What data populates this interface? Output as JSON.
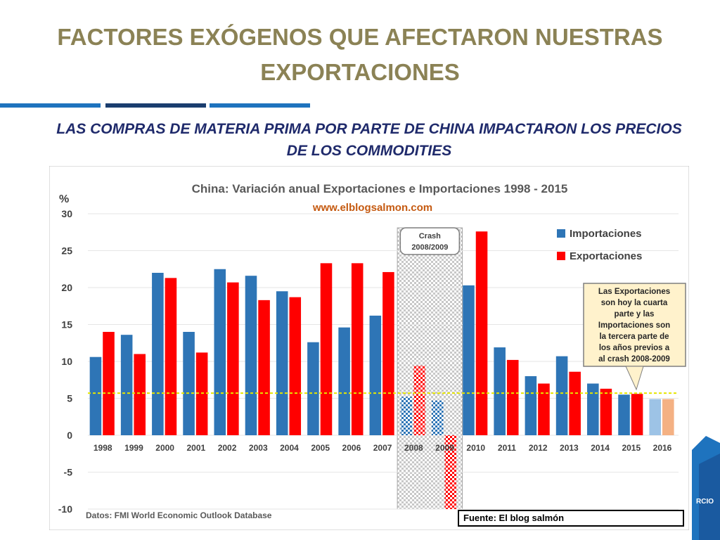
{
  "slide": {
    "title": "FACTORES EXÓGENOS QUE AFECTARON NUESTRAS EXPORTACIONES",
    "subtitle": "LAS COMPRAS DE MATERIA PRIMA POR PARTE DE CHINA IMPACTARON LOS PRECIOS DE LOS COMMODITIES",
    "source": "Fuente: El blog salmón",
    "deco_text": "RCIO",
    "colors": {
      "title": "#8b8255",
      "subtitle": "#1f2a6b",
      "accent_blue": "#1e73be",
      "accent_dark": "#1a3d6e"
    }
  },
  "chart_data": {
    "type": "bar",
    "title": "China: Variación anual Exportaciones e Importaciones 1998 - 2015",
    "subtitle": "www.elblogsalmon.com",
    "ylabel": "%",
    "ylim": [
      -10,
      30
    ],
    "yticks": [
      30,
      25,
      20,
      15,
      10,
      5,
      0,
      -5,
      -10
    ],
    "categories": [
      "1998",
      "1999",
      "2000",
      "2001",
      "2002",
      "2003",
      "2004",
      "2005",
      "2006",
      "2007",
      "2008",
      "2009",
      "2010",
      "2011",
      "2012",
      "2013",
      "2014",
      "2015",
      "2016"
    ],
    "series": [
      {
        "name": "Importaciones",
        "color": "#2e75b6",
        "values": [
          10.6,
          13.6,
          22.0,
          14.0,
          22.5,
          21.6,
          19.5,
          12.6,
          14.6,
          16.2,
          5.2,
          4.7,
          20.3,
          11.9,
          8.0,
          10.7,
          7.0,
          5.5,
          4.9
        ]
      },
      {
        "name": "Exportaciones",
        "color": "#ff0000",
        "values": [
          14.0,
          11.0,
          21.3,
          11.2,
          20.7,
          18.3,
          18.7,
          23.3,
          23.3,
          22.1,
          9.4,
          -10.0,
          27.6,
          10.2,
          7.0,
          8.6,
          6.3,
          5.6,
          4.9
        ]
      }
    ],
    "projection_colors": {
      "Importaciones": "#9dc3e6",
      "Exportaciones": "#f4b183"
    },
    "reference_line": 5.7,
    "crash_label": "Crash 2008/2009",
    "annotation": "Las Exportaciones son hoy la cuarta parte y las Importaciones son la tercera parte de los años previos a al crash 2008-2009",
    "footnote": "Datos: FMI World Economic Outlook Database",
    "grid": true,
    "legend_position": "top-right"
  }
}
